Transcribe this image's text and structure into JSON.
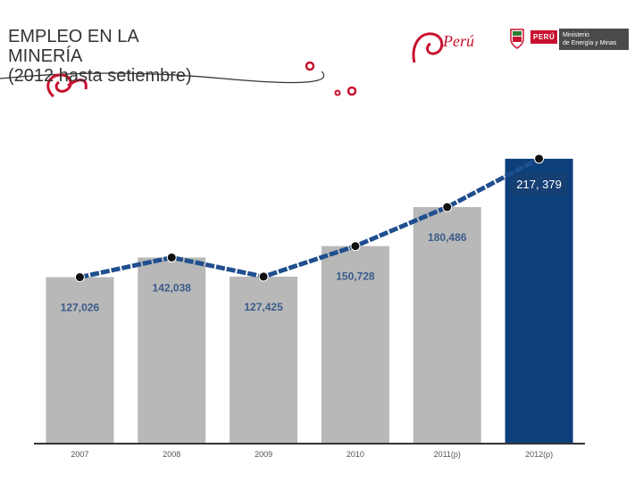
{
  "header": {
    "title_lines": [
      "EMPLEO EN LA",
      "MINERÍA",
      "(2012 hasta setiembre)"
    ],
    "brand_text": "Perú",
    "ministry_country": "PERÚ",
    "ministry_name_line1": "Ministerio",
    "ministry_name_line2": "de Energía y Minas"
  },
  "colors": {
    "bar": "#b8b8b8",
    "highlight_bar": "#0d3f7a",
    "line": "#1f4f8f",
    "marker": "#111111",
    "accent_red": "#c8102e"
  },
  "chart_data": {
    "type": "bar",
    "title": "EMPLEO EN LA MINERÍA (2012 hasta setiembre)",
    "xlabel": "",
    "ylabel": "",
    "ylim": [
      0,
      235000
    ],
    "categories": [
      "2007",
      "2008",
      "2009",
      "2010",
      "2011(p)",
      "2012(p)"
    ],
    "values": [
      127026,
      142038,
      127425,
      150728,
      180486,
      217379
    ],
    "data_labels": [
      "127,026",
      "142,038",
      "127,425",
      "150,728",
      "180,486",
      "217, 379"
    ],
    "highlight_index": 5,
    "overlay_line": true,
    "grid": false,
    "legend": "none"
  }
}
